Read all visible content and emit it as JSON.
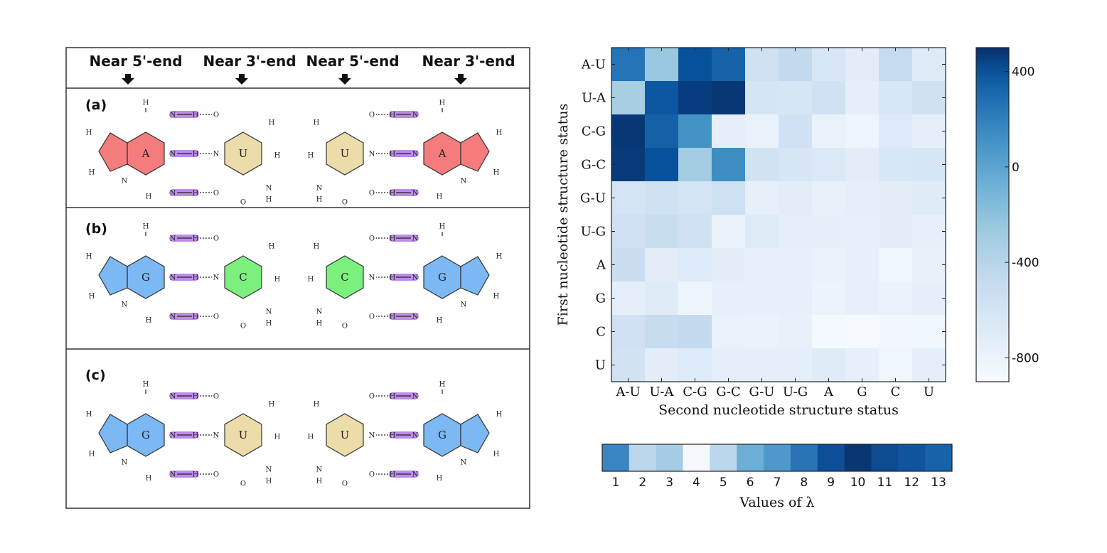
{
  "panel": {
    "headers": [
      "Near 5'-end",
      "Near 3'-end",
      "Near 5'-end",
      "Near 3'-end"
    ],
    "rows": [
      {
        "label": "(a)",
        "left_base": "A",
        "right_base": "U"
      },
      {
        "label": "(b)",
        "left_base": "G",
        "right_base": "C"
      },
      {
        "label": "(c)",
        "left_base": "G",
        "right_base": "U"
      }
    ],
    "atoms": {
      "H": "H",
      "N": "N",
      "C": "C",
      "O": "O"
    }
  },
  "colors": {
    "adenine": "#f47c7c",
    "uracil": "#ecdcaa",
    "guanine": "#7cb8f4",
    "cytosine": "#7cf07c",
    "hbond_highlight": "#b57fe8",
    "oxygen_highlight": "#e27ee8"
  },
  "chart_data": [
    {
      "type": "heatmap",
      "title": "",
      "xlabel": "Second nucleotide structure status",
      "ylabel": "First nucleotide structure status",
      "x_categories": [
        "A-U",
        "U-A",
        "C-G",
        "G-C",
        "G-U",
        "U-G",
        "A",
        "G",
        "C",
        "U"
      ],
      "y_categories": [
        "A-U",
        "U-A",
        "C-G",
        "G-C",
        "G-U",
        "U-G",
        "A",
        "G",
        "C",
        "U"
      ],
      "values": [
        [
          260,
          -250,
          400,
          330,
          -570,
          -470,
          -640,
          -720,
          -480,
          -690
        ],
        [
          -320,
          380,
          460,
          480,
          -610,
          -630,
          -560,
          -740,
          -650,
          -570
        ],
        [
          480,
          340,
          100,
          -740,
          -780,
          -560,
          -780,
          -810,
          -680,
          -740
        ],
        [
          470,
          400,
          -300,
          130,
          -580,
          -620,
          -660,
          -720,
          -650,
          -630
        ],
        [
          -600,
          -560,
          -600,
          -540,
          -750,
          -720,
          -770,
          -740,
          -730,
          -700
        ],
        [
          -560,
          -500,
          -560,
          -780,
          -690,
          -740,
          -740,
          -760,
          -730,
          -760
        ],
        [
          -520,
          -720,
          -680,
          -730,
          -760,
          -760,
          -780,
          -760,
          -840,
          -770
        ],
        [
          -740,
          -700,
          -820,
          -760,
          -760,
          -760,
          -800,
          -760,
          -790,
          -740
        ],
        [
          -560,
          -490,
          -470,
          -780,
          -790,
          -770,
          -870,
          -890,
          -860,
          -830
        ],
        [
          -580,
          -720,
          -680,
          -740,
          -740,
          -740,
          -700,
          -760,
          -830,
          -740
        ]
      ],
      "zlim": [
        -900,
        500
      ],
      "colorbar_ticks": [
        "400",
        "0",
        "-400",
        "-800"
      ],
      "colorbar_tick_values": [
        400,
        0,
        -400,
        -800
      ]
    },
    {
      "type": "heatmap",
      "title": "",
      "xlabel": "Values of λ",
      "categories": [
        "1",
        "2",
        "3",
        "4",
        "5",
        "6",
        "7",
        "8",
        "9",
        "10",
        "11",
        "12",
        "13"
      ],
      "colors": [
        "#3a85c2",
        "#bcd7ec",
        "#a6cbe4",
        "#f5f9fd",
        "#bbd7ec",
        "#6baed6",
        "#4e98cc",
        "#2a73b6",
        "#0e4e96",
        "#0a3772",
        "#0d4b92",
        "#0f559e",
        "#1763aa"
      ]
    }
  ]
}
